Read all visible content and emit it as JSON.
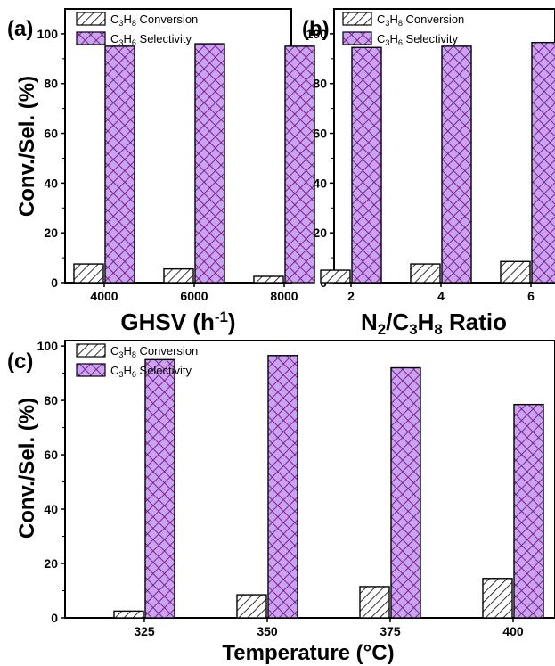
{
  "colors": {
    "conversion_fill": "#ffffff",
    "conversion_hatch": "#000000",
    "selectivity_fill": "#c9a4f0",
    "selectivity_hatch": "#7a0f8c",
    "axis": "#000000"
  },
  "chart_data": [
    {
      "type": "bar",
      "panel_label": "(a)",
      "categories": [
        "4000",
        "6000",
        "8000"
      ],
      "series": [
        {
          "name": "C3H8 Conversion",
          "values": [
            7.5,
            5.5,
            2.5
          ]
        },
        {
          "name": "C3H6 Selectivity",
          "values": [
            95,
            96,
            95
          ]
        }
      ],
      "xlabel": "GHSV (h-1)",
      "ylabel": "Conv./Sel. (%)",
      "ylim": [
        0,
        110
      ],
      "yticks": [
        "0",
        "20",
        "40",
        "60",
        "80",
        "100"
      ],
      "legend": "top",
      "grid": false
    },
    {
      "type": "bar",
      "panel_label": "(b)",
      "categories": [
        "2",
        "4",
        "6"
      ],
      "series": [
        {
          "name": "C3H8 Conversion",
          "values": [
            5,
            7.5,
            8.5
          ]
        },
        {
          "name": "C3H6 Selectivity",
          "values": [
            94.5,
            95,
            96.5
          ]
        }
      ],
      "xlabel": "N2/C3H8 Ratio",
      "ylabel": "",
      "ylim": [
        0,
        110
      ],
      "yticks": [
        "0",
        "20",
        "40",
        "60",
        "80",
        "100"
      ],
      "legend": "top",
      "grid": false
    },
    {
      "type": "bar",
      "panel_label": "(c)",
      "categories": [
        "325",
        "350",
        "375",
        "400"
      ],
      "series": [
        {
          "name": "C3H8 Conversion",
          "values": [
            2.5,
            8.5,
            11.5,
            14.5
          ]
        },
        {
          "name": "C3H6 Selectivity",
          "values": [
            95,
            96.5,
            92,
            78.5
          ]
        }
      ],
      "xlabel": "Temperature (°C)",
      "ylabel": "Conv./Sel. (%)",
      "ylim": [
        0,
        102
      ],
      "yticks": [
        "0",
        "20",
        "40",
        "60",
        "80",
        "100"
      ],
      "legend": "top-left",
      "grid": false
    }
  ]
}
